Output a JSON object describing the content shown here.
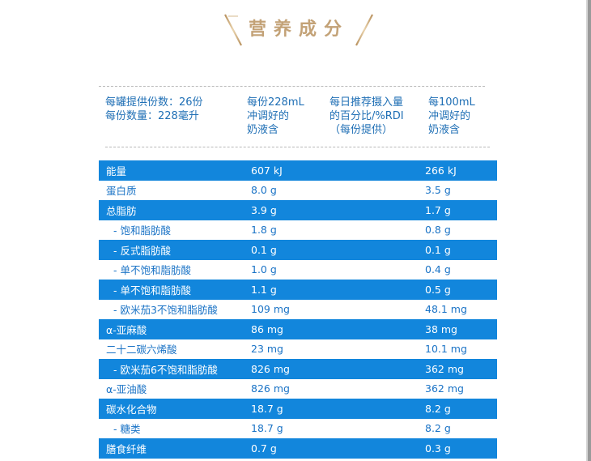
{
  "title": "营养成分",
  "header": {
    "col1": [
      "每罐提供份数：26份",
      "每份数量：228毫升"
    ],
    "col2": [
      "每份228mL",
      "冲调好的",
      "奶液含"
    ],
    "col3": [
      "每日推荐摄入量",
      "的百分比/%RDI",
      "（每份提供）"
    ],
    "col4": [
      "每100mL",
      "冲调好的",
      "奶液含"
    ]
  },
  "rows": [
    {
      "name": "能量",
      "per_serving": "607 kJ",
      "per_100ml": "266 kJ"
    },
    {
      "name": "蛋白质",
      "per_serving": "8.0 g",
      "per_100ml": "3.5 g"
    },
    {
      "name": "总脂肪",
      "per_serving": "3.9 g",
      "per_100ml": "1.7 g"
    },
    {
      "name": "- 饱和脂肪酸",
      "per_serving": "1.8 g",
      "per_100ml": "0.8 g"
    },
    {
      "name": "- 反式脂肪酸",
      "per_serving": "0.1 g",
      "per_100ml": "0.1 g"
    },
    {
      "name": "- 单不饱和脂肪酸",
      "per_serving": "1.0 g",
      "per_100ml": "0.4 g"
    },
    {
      "name": "- 单不饱和脂肪酸",
      "per_serving": "1.1 g",
      "per_100ml": "0.5 g"
    },
    {
      "name": "- 欧米茄3不饱和脂肪酸",
      "per_serving": "109 mg",
      "per_100ml": "48.1 mg"
    },
    {
      "name": "α-亚麻酸",
      "per_serving": "86 mg",
      "per_100ml": "38 mg"
    },
    {
      "name": "二十二碳六烯酸",
      "per_serving": "23 mg",
      "per_100ml": "10.1 mg"
    },
    {
      "name": "- 欧米茄6不饱和脂肪酸",
      "per_serving": "826 mg",
      "per_100ml": "362 mg"
    },
    {
      "name": "α-亚油酸",
      "per_serving": "826 mg",
      "per_100ml": "362 mg"
    },
    {
      "name": "碳水化合物",
      "per_serving": "18.7 g",
      "per_100ml": "8.2 g"
    },
    {
      "name": "- 糖类",
      "per_serving": "18.7 g",
      "per_100ml": "8.2 g"
    },
    {
      "name": "膳食纤维",
      "per_serving": "0.7 g",
      "per_100ml": "0.3 g"
    }
  ],
  "colors": {
    "row_blue": "#1286dc",
    "text_blue": "#1a73c6",
    "title_gold": "#c3a277"
  }
}
